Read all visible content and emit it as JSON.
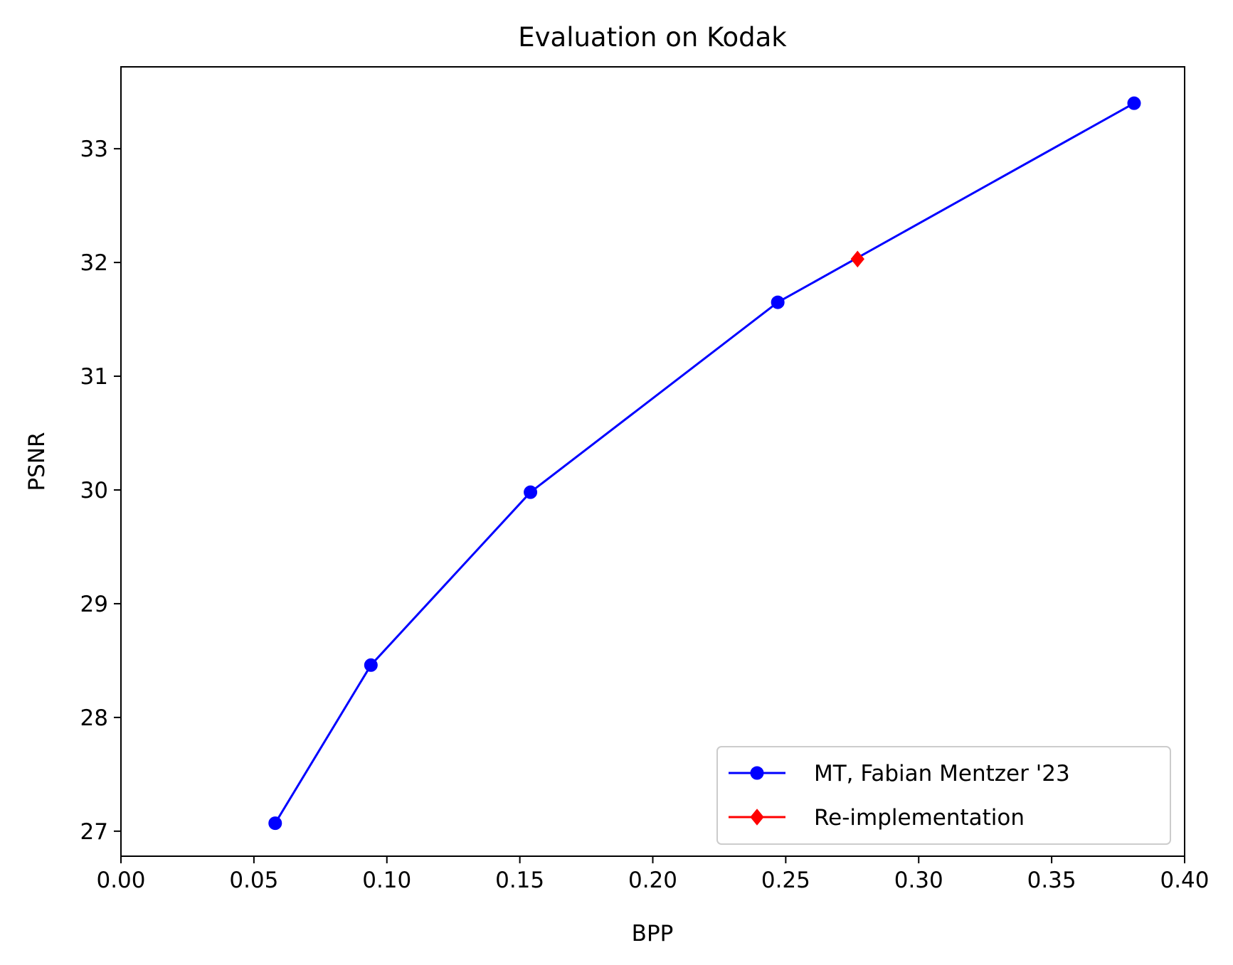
{
  "chart_data": {
    "type": "line",
    "title": "Evaluation on Kodak",
    "xlabel": "BPP",
    "ylabel": "PSNR",
    "xlim": [
      0.0,
      0.4
    ],
    "ylim": [
      26.78,
      33.72
    ],
    "xticks": [
      0.0,
      0.05,
      0.1,
      0.15,
      0.2,
      0.25,
      0.3,
      0.35,
      0.4
    ],
    "xtick_labels": [
      "0.00",
      "0.05",
      "0.10",
      "0.15",
      "0.20",
      "0.25",
      "0.30",
      "0.35",
      "0.40"
    ],
    "yticks": [
      27,
      28,
      29,
      30,
      31,
      32,
      33
    ],
    "ytick_labels": [
      "27",
      "28",
      "29",
      "30",
      "31",
      "32",
      "33"
    ],
    "grid": false,
    "legend_position": "lower-right",
    "series": [
      {
        "name": "MT, Fabian Mentzer '23",
        "color": "#0000ff",
        "marker": "circle",
        "x": [
          0.058,
          0.094,
          0.154,
          0.247,
          0.381
        ],
        "y": [
          27.07,
          28.46,
          29.98,
          31.65,
          33.4
        ]
      },
      {
        "name": "Re-implementation",
        "color": "#ff0000",
        "marker": "diamond",
        "x": [
          0.277
        ],
        "y": [
          32.03
        ]
      }
    ]
  }
}
